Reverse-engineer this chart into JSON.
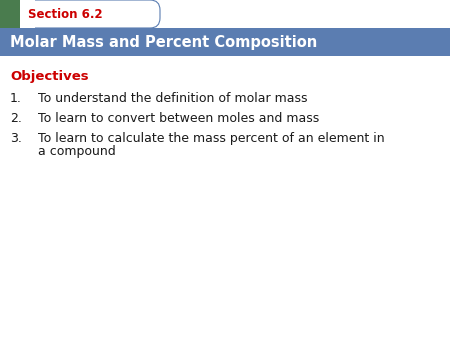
{
  "section_label": "Section 6.2",
  "title": "Molar Mass and Percent Composition",
  "objectives_label": "Objectives",
  "items": [
    "To understand the definition of molar mass",
    "To learn to convert between moles and mass",
    "To learn to calculate the mass percent of an element in\na compound"
  ],
  "header_bg_color": "#5b7db1",
  "tab_bg_color": "#ffffff",
  "section_color": "#cc0000",
  "title_text_color": "#ffffff",
  "objectives_color": "#cc0000",
  "body_text_color": "#1a1a1a",
  "green_square_color": "#4a7c4e",
  "tab_border_color": "#5b7db1",
  "background_color": "#ffffff",
  "title_fontsize": 10.5,
  "section_fontsize": 8.5,
  "objectives_fontsize": 9.5,
  "body_fontsize": 9.0,
  "fig_width": 4.5,
  "fig_height": 3.38,
  "dpi": 100
}
